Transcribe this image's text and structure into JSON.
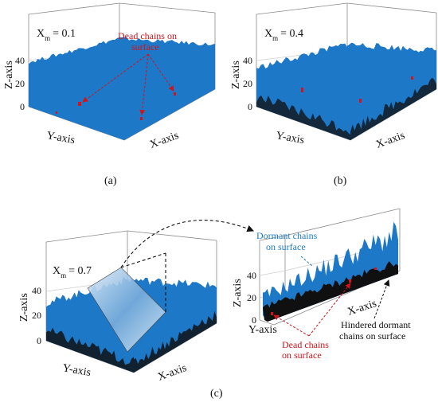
{
  "colors": {
    "surface": "#1e78c8",
    "dormant": "#101010",
    "dead": "#d0141b",
    "annotation_blue": "#1f7ac8"
  },
  "panels": [
    {
      "id": "a",
      "caption": "(a)",
      "xm_label": "X",
      "xm_sub": "m",
      "xm_value": "= 0.1",
      "xlabel": "X-axis",
      "ylabel": "Y-axis",
      "zlabel": "Z-axis",
      "zticks": [
        "0",
        "20",
        "40"
      ]
    },
    {
      "id": "b",
      "caption": "(b)",
      "xm_label": "X",
      "xm_sub": "m",
      "xm_value": "= 0.4",
      "xlabel": "X-axis",
      "ylabel": "Y-axis",
      "zlabel": "Z-axis",
      "zticks": [
        "0",
        "20",
        "40"
      ]
    },
    {
      "id": "c",
      "caption": "(c)",
      "xm_label": "X",
      "xm_sub": "m",
      "xm_value": "= 0.7",
      "xlabel": "X-axis",
      "ylabel": "Y-axis",
      "zlabel": "Z-axis",
      "zticks": [
        "0",
        "20",
        "40"
      ]
    },
    {
      "id": "c-zoom",
      "xlabel": "X-axis",
      "ylabel": "Y-axis",
      "zlabel": "Z-axis",
      "zticks": [
        "0",
        "20",
        "40"
      ]
    }
  ],
  "annotations": {
    "a_dead": [
      "Dead chains on",
      "surface"
    ],
    "c_dormant": [
      "Dormant chains",
      "on surface"
    ],
    "c_dead": [
      "Dead chains",
      "on surface"
    ],
    "c_hindered": [
      "Hindered dormant",
      "chains on surface"
    ]
  }
}
